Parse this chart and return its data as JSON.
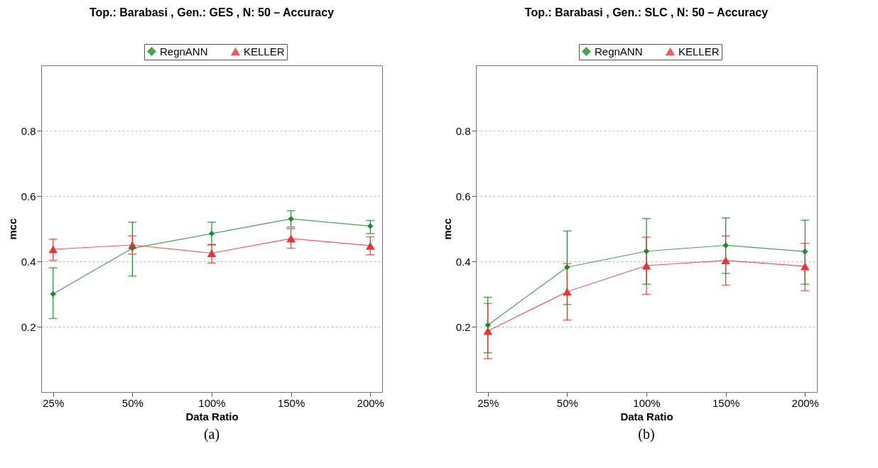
{
  "chart_data": [
    {
      "type": "line",
      "title": "Top.: Barabasi , Gen.: GES , N: 50  –  Accuracy",
      "xlabel": "Data Ratio",
      "ylabel": "mcc",
      "annotations": [
        "(a)"
      ],
      "categories": [
        "25%",
        "50%",
        "100%",
        "150%",
        "200%"
      ],
      "ylim": [
        0,
        1
      ],
      "yticks": [
        0.2,
        0.4,
        0.6,
        0.8
      ],
      "grid": "y",
      "legend": "top",
      "line_style": "solid",
      "series": [
        {
          "name": "RegnANN",
          "color": "#1e8c2a",
          "marker": "diamond",
          "values": [
            0.3,
            0.44,
            0.485,
            0.53,
            0.508
          ],
          "errors": [
            [
              0.225,
              0.38
            ],
            [
              0.355,
              0.52
            ],
            [
              0.45,
              0.52
            ],
            [
              0.505,
              0.555
            ],
            [
              0.485,
              0.525
            ]
          ]
        },
        {
          "name": "KELLER",
          "color": "#e83535",
          "marker": "triangle",
          "values": [
            0.437,
            0.45,
            0.425,
            0.47,
            0.448
          ],
          "errors": [
            [
              0.403,
              0.468
            ],
            [
              0.422,
              0.478
            ],
            [
              0.395,
              0.452
            ],
            [
              0.44,
              0.5
            ],
            [
              0.42,
              0.475
            ]
          ]
        }
      ]
    },
    {
      "type": "line",
      "title": "Top.: Barabasi , Gen.: SLC , N: 50  –  Accuracy",
      "xlabel": "Data Ratio",
      "ylabel": "mcc",
      "annotations": [
        "(b)"
      ],
      "categories": [
        "25%",
        "50%",
        "100%",
        "150%",
        "200%"
      ],
      "ylim": [
        0,
        1
      ],
      "yticks": [
        0.2,
        0.4,
        0.6,
        0.8
      ],
      "grid": "y",
      "legend": "top",
      "line_style": "solid",
      "series": [
        {
          "name": "RegnANN",
          "color": "#1e8c2a",
          "marker": "diamond",
          "values": [
            0.205,
            0.382,
            0.431,
            0.449,
            0.43
          ],
          "errors": [
            [
              0.12,
              0.29
            ],
            [
              0.268,
              0.493
            ],
            [
              0.33,
              0.531
            ],
            [
              0.363,
              0.533
            ],
            [
              0.33,
              0.526
            ]
          ]
        },
        {
          "name": "KELLER",
          "color": "#e83535",
          "marker": "triangle",
          "values": [
            0.187,
            0.307,
            0.387,
            0.403,
            0.385
          ],
          "errors": [
            [
              0.102,
              0.271
            ],
            [
              0.22,
              0.393
            ],
            [
              0.299,
              0.474
            ],
            [
              0.327,
              0.478
            ],
            [
              0.31,
              0.455
            ]
          ]
        }
      ]
    }
  ]
}
